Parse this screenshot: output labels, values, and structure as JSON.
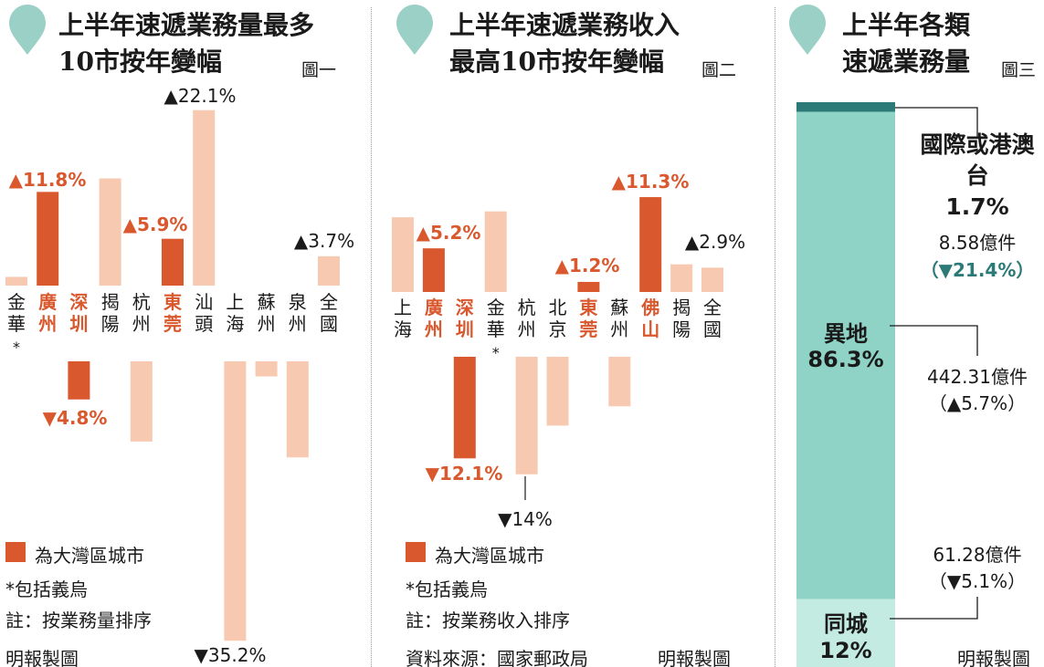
{
  "colors": {
    "accent": "#d9582e",
    "pale": "#f7c9b0",
    "teal": "#8ed3c5",
    "teal_dark": "#2c7a78",
    "teal_light": "#c3ebe2",
    "drop": "#9ad0c6",
    "text": "#1a1a1a"
  },
  "panel1": {
    "title_lines": [
      "上半年速遞業務量最多",
      "10市按年變幅"
    ],
    "fig_label": "圖一",
    "legend": {
      "swatch_label": "為大灣區城市",
      "footnote": "*包括義烏",
      "note": "註：按業務量排序"
    },
    "credit": "明報製圖"
  },
  "panel2": {
    "title_lines": [
      "上半年速遞業務收入",
      "最高10市按年變幅"
    ],
    "fig_label": "圖二",
    "legend": {
      "swatch_label": "為大灣區城市",
      "footnote": "*包括義烏",
      "note": "註：按業務收入排序"
    },
    "source": "資料來源：國家郵政局",
    "credit": "明報製圖"
  },
  "panel3": {
    "title_lines": [
      "上半年各類",
      "速遞業務量"
    ],
    "fig_label": "圖三",
    "credit": "明報製圖",
    "segments": [
      {
        "name": "國際或港澳台",
        "pct_label": "1.7%",
        "amount": "8.58億件",
        "change": "（▼21.4%）"
      },
      {
        "name": "異地",
        "pct_label": "86.3%",
        "amount": "442.31億件",
        "change": "（▲5.7%）"
      },
      {
        "name": "同城",
        "pct_label": "12%",
        "amount": "61.28億件",
        "change": "（▼5.1%）"
      }
    ]
  },
  "chart_data": [
    {
      "type": "bar",
      "title": "上半年速遞業務量最多10市按年變幅",
      "categories": [
        "金華*",
        "廣州",
        "深圳",
        "揭陽",
        "杭州",
        "東莞",
        "汕頭",
        "上海",
        "蘇州",
        "泉州",
        "全國"
      ],
      "values": [
        1.1,
        11.8,
        -4.8,
        13.5,
        -10.1,
        5.9,
        22.1,
        -35.2,
        -1.9,
        -12.1,
        3.7
      ],
      "labels": [
        "",
        "▲11.8%",
        "▼4.8%",
        "",
        "",
        "▲5.9%",
        "▲22.1%",
        "▼35.2%",
        "",
        "",
        "▲3.7%"
      ],
      "highlight": [
        false,
        true,
        true,
        false,
        false,
        true,
        false,
        false,
        false,
        false,
        false
      ]
    },
    {
      "type": "bar",
      "title": "上半年速遞業務收入最高10市按年變幅",
      "categories": [
        "上海",
        "廣州",
        "深圳",
        "金華*",
        "杭州",
        "北京",
        "東莞",
        "蘇州",
        "佛山",
        "揭陽",
        "全國"
      ],
      "values": [
        8.9,
        5.2,
        -12.1,
        9.6,
        -14.0,
        -8.2,
        1.2,
        -5.9,
        11.3,
        3.3,
        2.9
      ],
      "labels": [
        "",
        "▲5.2%",
        "▼12.1%",
        "",
        "▼14%",
        "",
        "▲1.2%",
        "",
        "▲11.3%",
        "",
        "▲2.9%"
      ],
      "highlight": [
        false,
        true,
        true,
        false,
        false,
        false,
        true,
        false,
        true,
        false,
        false
      ]
    },
    {
      "type": "bar",
      "title": "上半年各類速遞業務量",
      "categories": [
        "國際或港澳台",
        "異地",
        "同城"
      ],
      "values": [
        1.7,
        86.3,
        12
      ]
    }
  ]
}
